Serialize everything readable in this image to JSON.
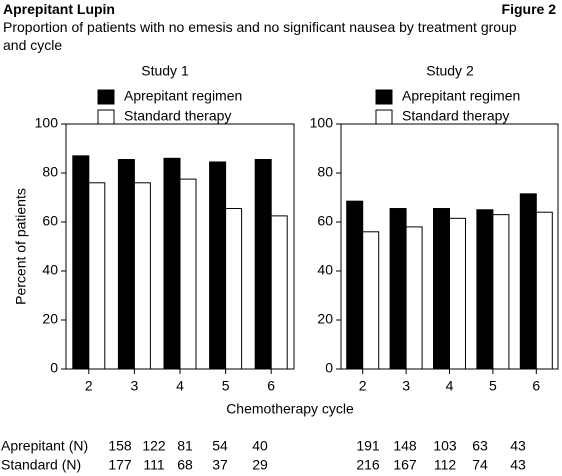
{
  "header": {
    "title": "Aprepitant Lupin",
    "figure": "Figure 2",
    "subtitle": "Proportion of patients with no emesis and no significant nausea by treatment group and cycle"
  },
  "chart_data": [
    {
      "type": "bar",
      "title": "Study 1",
      "ylabel": "Percent of patients",
      "categories": [
        "2",
        "3",
        "4",
        "5",
        "6"
      ],
      "series": [
        {
          "name": "Aprepitant regimen",
          "color": "#000000",
          "values": [
            87,
            85.5,
            86,
            84.5,
            85.5
          ]
        },
        {
          "name": "Standard therapy",
          "color": "#ffffff",
          "values": [
            76,
            76,
            77.5,
            65.5,
            62.5
          ]
        }
      ],
      "ylim": [
        0,
        100
      ],
      "yticks": [
        0,
        20,
        40,
        60,
        80,
        100
      ],
      "legend": "top-left"
    },
    {
      "type": "bar",
      "title": "Study 2",
      "categories": [
        "2",
        "3",
        "4",
        "5",
        "6"
      ],
      "series": [
        {
          "name": "Aprepitant regimen",
          "color": "#000000",
          "values": [
            68.5,
            65.5,
            65.5,
            65,
            71.5
          ]
        },
        {
          "name": "Standard therapy",
          "color": "#ffffff",
          "values": [
            56,
            58,
            61.5,
            63,
            64
          ]
        }
      ],
      "ylim": [
        0,
        100
      ],
      "yticks": [
        0,
        20,
        40,
        60,
        80,
        100
      ],
      "legend": "top-left"
    }
  ],
  "xlabel": "Chemotherapy cycle",
  "n_table": {
    "rows": [
      {
        "label": "Aprepitant (N)",
        "values": [
          [
            158,
            122,
            81,
            54,
            40
          ],
          [
            191,
            148,
            103,
            63,
            43
          ]
        ]
      },
      {
        "label": "Standard (N)",
        "values": [
          [
            177,
            111,
            68,
            37,
            29
          ],
          [
            216,
            167,
            112,
            74,
            43
          ]
        ]
      }
    ]
  }
}
